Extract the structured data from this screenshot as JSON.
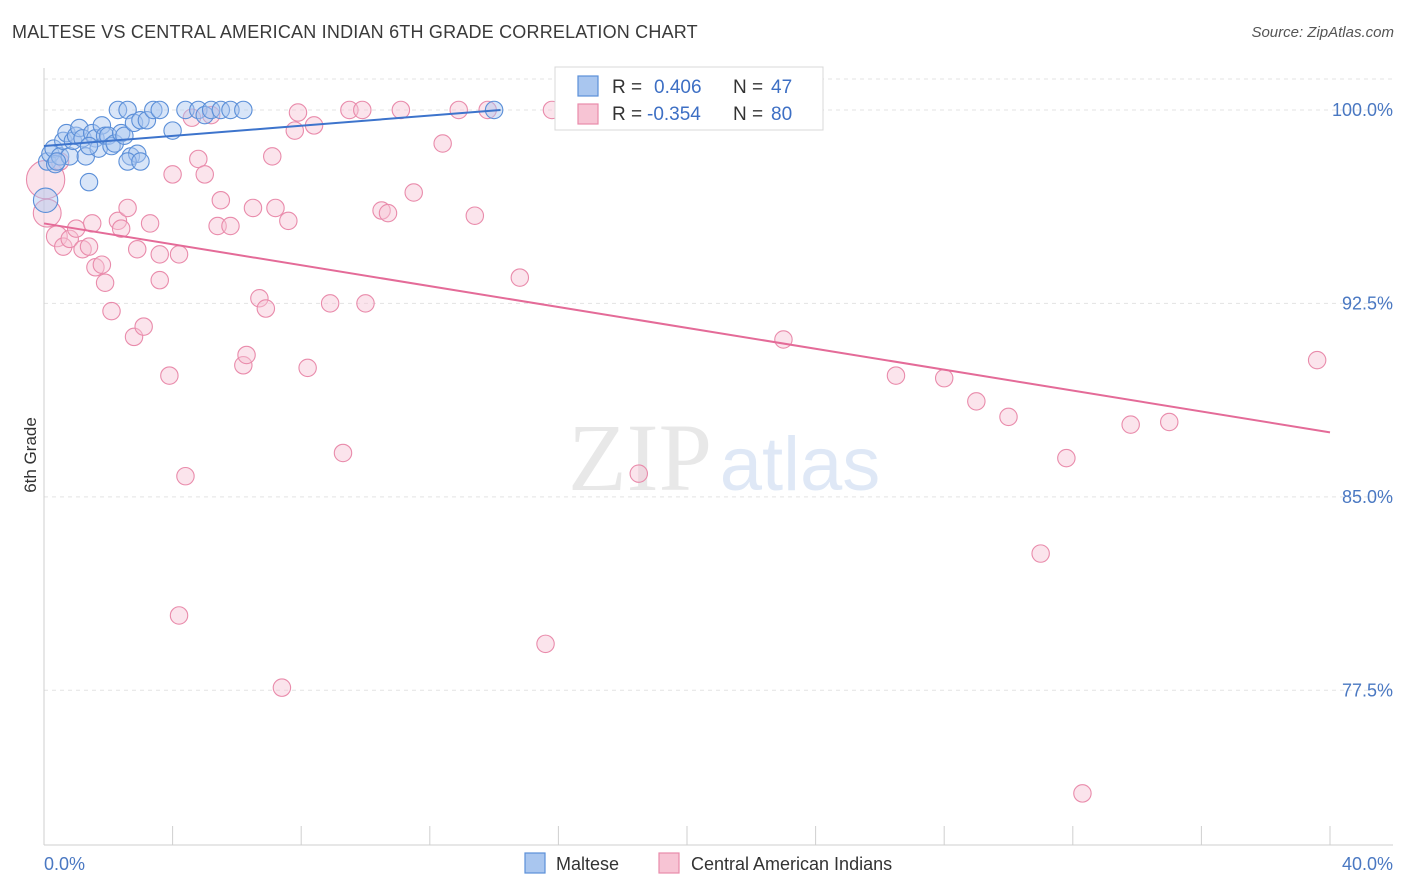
{
  "header": {
    "title": "MALTESE VS CENTRAL AMERICAN INDIAN 6TH GRADE CORRELATION CHART",
    "source": "Source: ZipAtlas.com"
  },
  "watermark": {
    "zip": "ZIP",
    "atlas": "atlas"
  },
  "colors": {
    "blue_fill": "#a9c6ef",
    "blue_stroke": "#5b8fd8",
    "blue_line": "#3d74cc",
    "pink_fill": "#f7c4d4",
    "pink_stroke": "#e98bab",
    "pink_line": "#e46b98",
    "tick_text": "#4a78c2",
    "grid": "#e3e3e3"
  },
  "legend_box": {
    "rows": [
      {
        "r_label": "R =",
        "r_value": "0.406",
        "n_label": "N =",
        "n_value": "47",
        "series": "blue"
      },
      {
        "r_label": "R =",
        "r_value": "-0.354",
        "n_label": "N =",
        "n_value": "80",
        "series": "pink"
      }
    ]
  },
  "bottom_legend": {
    "items": [
      "Maltese",
      "Central American Indians"
    ]
  },
  "chart_data": {
    "type": "scatter",
    "title": "MALTESE VS CENTRAL AMERICAN INDIAN 6TH GRADE CORRELATION CHART",
    "xlabel": "",
    "ylabel": "6th Grade",
    "xlim": [
      0,
      40
    ],
    "ylim": [
      71.5,
      101.2
    ],
    "x_tick_labels": [
      "0.0%",
      "40.0%"
    ],
    "y_ticks": [
      77.5,
      85.0,
      92.5,
      100.0
    ],
    "y_tick_labels": [
      "77.5%",
      "85.0%",
      "92.5%",
      "100.0%"
    ],
    "grid": true,
    "series": [
      {
        "name": "Maltese",
        "color": "blue",
        "R": 0.406,
        "N": 47,
        "trend": {
          "x": [
            0,
            14.2
          ],
          "y": [
            98.6,
            100.0
          ]
        },
        "points": [
          [
            0.05,
            96.5,
            14
          ],
          [
            0.1,
            98.0,
            10
          ],
          [
            0.2,
            98.3,
            10
          ],
          [
            0.3,
            98.5,
            10
          ],
          [
            0.35,
            97.9,
            10
          ],
          [
            0.5,
            98.2,
            10
          ],
          [
            0.6,
            98.8,
            10
          ],
          [
            0.7,
            99.1,
            10
          ],
          [
            0.8,
            98.2,
            10
          ],
          [
            0.9,
            98.8,
            10
          ],
          [
            1.0,
            99.0,
            10
          ],
          [
            1.1,
            99.3,
            10
          ],
          [
            1.2,
            98.9,
            10
          ],
          [
            1.3,
            98.2,
            10
          ],
          [
            1.4,
            97.2,
            10
          ],
          [
            1.5,
            99.1,
            10
          ],
          [
            1.6,
            98.9,
            10
          ],
          [
            1.7,
            98.5,
            10
          ],
          [
            1.8,
            99.4,
            10
          ],
          [
            1.9,
            99.0,
            10
          ],
          [
            2.0,
            99.0,
            10
          ],
          [
            2.1,
            98.6,
            10
          ],
          [
            2.2,
            98.7,
            10
          ],
          [
            2.3,
            100.0,
            10
          ],
          [
            2.4,
            99.1,
            10
          ],
          [
            2.5,
            99.0,
            10
          ],
          [
            2.6,
            100.0,
            10
          ],
          [
            2.7,
            98.2,
            10
          ],
          [
            2.8,
            99.5,
            10
          ],
          [
            2.9,
            98.3,
            10
          ],
          [
            3.0,
            99.6,
            10
          ],
          [
            3.2,
            99.6,
            10
          ],
          [
            3.4,
            100.0,
            10
          ],
          [
            3.6,
            100.0,
            10
          ],
          [
            4.0,
            99.2,
            10
          ],
          [
            4.4,
            100.0,
            10
          ],
          [
            4.8,
            100.0,
            10
          ],
          [
            5.0,
            99.8,
            10
          ],
          [
            5.2,
            100.0,
            10
          ],
          [
            5.5,
            100.0,
            10
          ],
          [
            5.8,
            100.0,
            10
          ],
          [
            6.2,
            100.0,
            10
          ],
          [
            2.6,
            98.0,
            10
          ],
          [
            3.0,
            98.0,
            10
          ],
          [
            1.4,
            98.6,
            10
          ],
          [
            0.4,
            98.0,
            10
          ],
          [
            14.0,
            100.0,
            10
          ]
        ]
      },
      {
        "name": "Central American Indians",
        "color": "pink",
        "R": -0.354,
        "N": 80,
        "trend": {
          "x": [
            0,
            40
          ],
          "y": [
            95.6,
            87.5
          ]
        },
        "points": [
          [
            0.05,
            97.3,
            22
          ],
          [
            0.1,
            96.0,
            16
          ],
          [
            0.4,
            95.1,
            12
          ],
          [
            0.6,
            94.7,
            10
          ],
          [
            0.8,
            95.0,
            10
          ],
          [
            1.0,
            95.4,
            10
          ],
          [
            1.2,
            94.6,
            10
          ],
          [
            1.4,
            94.7,
            10
          ],
          [
            1.5,
            95.6,
            10
          ],
          [
            1.6,
            93.9,
            10
          ],
          [
            1.8,
            94.0,
            10
          ],
          [
            1.9,
            93.3,
            10
          ],
          [
            2.1,
            92.2,
            10
          ],
          [
            2.3,
            95.7,
            10
          ],
          [
            2.4,
            95.4,
            10
          ],
          [
            2.6,
            96.2,
            10
          ],
          [
            2.8,
            91.2,
            10
          ],
          [
            2.9,
            94.6,
            10
          ],
          [
            3.1,
            91.6,
            10
          ],
          [
            3.3,
            95.6,
            10
          ],
          [
            3.6,
            94.4,
            10
          ],
          [
            3.6,
            93.4,
            10
          ],
          [
            3.9,
            89.7,
            10
          ],
          [
            4.0,
            97.5,
            10
          ],
          [
            4.2,
            94.4,
            10
          ],
          [
            4.4,
            85.8,
            10
          ],
          [
            4.6,
            99.7,
            10
          ],
          [
            4.8,
            98.1,
            10
          ],
          [
            5.0,
            97.5,
            10
          ],
          [
            5.2,
            99.8,
            10
          ],
          [
            5.4,
            95.5,
            10
          ],
          [
            5.5,
            96.5,
            10
          ],
          [
            5.8,
            95.5,
            10
          ],
          [
            6.2,
            90.1,
            10
          ],
          [
            6.3,
            90.5,
            10
          ],
          [
            6.5,
            96.2,
            10
          ],
          [
            6.7,
            92.7,
            10
          ],
          [
            6.9,
            92.3,
            10
          ],
          [
            7.1,
            98.2,
            10
          ],
          [
            7.2,
            96.2,
            10
          ],
          [
            7.4,
            77.6,
            10
          ],
          [
            7.6,
            95.7,
            10
          ],
          [
            7.8,
            99.2,
            10
          ],
          [
            7.9,
            99.9,
            10
          ],
          [
            8.2,
            90.0,
            10
          ],
          [
            8.4,
            99.4,
            10
          ],
          [
            8.9,
            92.5,
            10
          ],
          [
            9.3,
            86.7,
            10
          ],
          [
            9.5,
            100.0,
            10
          ],
          [
            9.9,
            100.0,
            10
          ],
          [
            10.0,
            92.5,
            10
          ],
          [
            10.5,
            96.1,
            10
          ],
          [
            10.7,
            96.0,
            10
          ],
          [
            11.1,
            100.0,
            10
          ],
          [
            11.5,
            96.8,
            10
          ],
          [
            12.4,
            98.7,
            10
          ],
          [
            12.9,
            100.0,
            10
          ],
          [
            13.4,
            95.9,
            10
          ],
          [
            13.8,
            100.0,
            10
          ],
          [
            14.8,
            93.5,
            10
          ],
          [
            15.6,
            79.3,
            10
          ],
          [
            15.8,
            100.0,
            10
          ],
          [
            16.8,
            100.0,
            10
          ],
          [
            18.5,
            85.9,
            10
          ],
          [
            19.2,
            100.0,
            10
          ],
          [
            20.5,
            100.0,
            10
          ],
          [
            21.5,
            100.0,
            10
          ],
          [
            23.0,
            91.1,
            10
          ],
          [
            26.5,
            89.7,
            10
          ],
          [
            28.0,
            89.6,
            10
          ],
          [
            29.0,
            88.7,
            10
          ],
          [
            30.0,
            88.1,
            10
          ],
          [
            31.0,
            82.8,
            10
          ],
          [
            31.8,
            86.5,
            10
          ],
          [
            32.3,
            73.5,
            10
          ],
          [
            33.8,
            87.8,
            10
          ],
          [
            35.0,
            87.9,
            10
          ],
          [
            39.6,
            90.3,
            10
          ],
          [
            4.2,
            80.4,
            10
          ],
          [
            0.5,
            98.0,
            10
          ]
        ]
      }
    ]
  }
}
